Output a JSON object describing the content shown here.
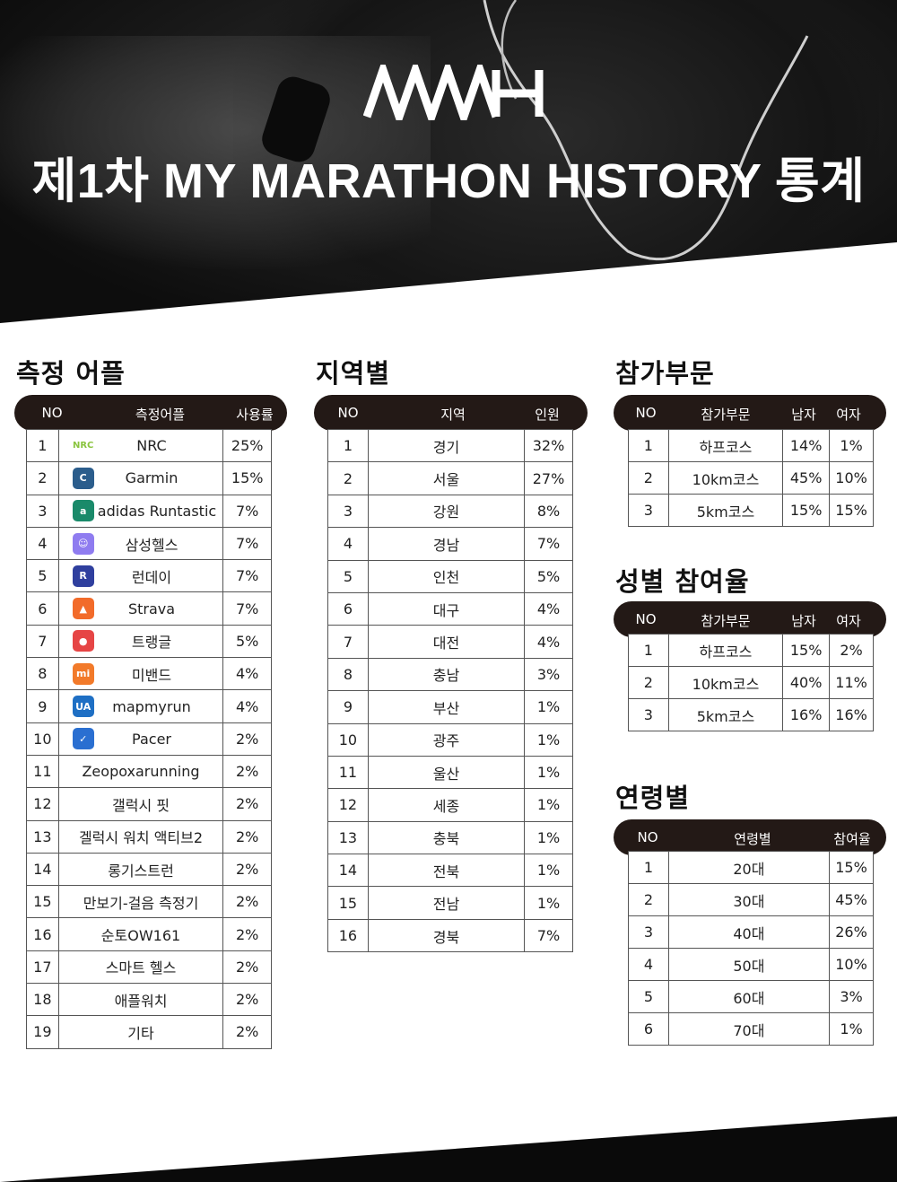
{
  "header": {
    "logo": "MMH",
    "title": "제1차 MY MARATHON HISTORY 통계"
  },
  "apps": {
    "title": "측정 어플",
    "headers": [
      "NO",
      "측정어플",
      "사용률"
    ],
    "rows": [
      {
        "no": "1",
        "name": "NRC",
        "rate": "25%",
        "icon": "nike-icon",
        "color": "#ffffff"
      },
      {
        "no": "2",
        "name": "Garmin",
        "rate": "15%",
        "icon": "garmin-icon",
        "color": "#2b5d8c"
      },
      {
        "no": "3",
        "name": "adidas Runtastic",
        "rate": "7%",
        "icon": "adidas-icon",
        "color": "#1a8a6a"
      },
      {
        "no": "4",
        "name": "삼성헬스",
        "rate": "7%",
        "icon": "samsung-health-icon",
        "color": "#8f7cf0"
      },
      {
        "no": "5",
        "name": "런데이",
        "rate": "7%",
        "icon": "runday-icon",
        "color": "#2f3f9e"
      },
      {
        "no": "6",
        "name": "Strava",
        "rate": "7%",
        "icon": "strava-icon",
        "color": "#f26b2a"
      },
      {
        "no": "7",
        "name": "트랭글",
        "rate": "5%",
        "icon": "tranggle-icon",
        "color": "#e64545"
      },
      {
        "no": "8",
        "name": "미밴드",
        "rate": "4%",
        "icon": "miband-icon",
        "color": "#f27a2a"
      },
      {
        "no": "9",
        "name": "mapmyrun",
        "rate": "4%",
        "icon": "mapmyrun-icon",
        "color": "#1e6fc4"
      },
      {
        "no": "10",
        "name": "Pacer",
        "rate": "2%",
        "icon": "pacer-icon",
        "color": "#2a6fd1"
      },
      {
        "no": "11",
        "name": "Zeopoxarunning",
        "rate": "2%"
      },
      {
        "no": "12",
        "name": "갤럭시 핏",
        "rate": "2%"
      },
      {
        "no": "13",
        "name": "겔럭시 워치 액티브2",
        "rate": "2%"
      },
      {
        "no": "14",
        "name": "롱기스트런",
        "rate": "2%"
      },
      {
        "no": "15",
        "name": "만보기-걸음 측정기",
        "rate": "2%"
      },
      {
        "no": "16",
        "name": "순토OW161",
        "rate": "2%"
      },
      {
        "no": "17",
        "name": "스마트 헬스",
        "rate": "2%"
      },
      {
        "no": "18",
        "name": "애플워치",
        "rate": "2%"
      },
      {
        "no": "19",
        "name": "기타",
        "rate": "2%"
      }
    ]
  },
  "regions": {
    "title": "지역별",
    "headers": [
      "NO",
      "지역",
      "인원"
    ],
    "rows": [
      {
        "no": "1",
        "name": "경기",
        "rate": "32%"
      },
      {
        "no": "2",
        "name": "서울",
        "rate": "27%"
      },
      {
        "no": "3",
        "name": "강원",
        "rate": "8%"
      },
      {
        "no": "4",
        "name": "경남",
        "rate": "7%"
      },
      {
        "no": "5",
        "name": "인천",
        "rate": "5%"
      },
      {
        "no": "6",
        "name": "대구",
        "rate": "4%"
      },
      {
        "no": "7",
        "name": "대전",
        "rate": "4%"
      },
      {
        "no": "8",
        "name": "충남",
        "rate": "3%"
      },
      {
        "no": "9",
        "name": "부산",
        "rate": "1%"
      },
      {
        "no": "10",
        "name": "광주",
        "rate": "1%"
      },
      {
        "no": "11",
        "name": "울산",
        "rate": "1%"
      },
      {
        "no": "12",
        "name": "세종",
        "rate": "1%"
      },
      {
        "no": "13",
        "name": "충북",
        "rate": "1%"
      },
      {
        "no": "14",
        "name": "전북",
        "rate": "1%"
      },
      {
        "no": "15",
        "name": "전남",
        "rate": "1%"
      },
      {
        "no": "16",
        "name": "경북",
        "rate": "7%"
      }
    ]
  },
  "divisions": {
    "title": "참가부문",
    "headers": [
      "NO",
      "참가부문",
      "남자",
      "여자"
    ],
    "rows": [
      {
        "no": "1",
        "name": "하프코스",
        "male": "14%",
        "female": "1%"
      },
      {
        "no": "2",
        "name": "10km코스",
        "male": "45%",
        "female": "10%"
      },
      {
        "no": "3",
        "name": "5km코스",
        "male": "15%",
        "female": "15%"
      }
    ]
  },
  "gender": {
    "title": "성별 참여율",
    "headers": [
      "NO",
      "참가부문",
      "남자",
      "여자"
    ],
    "rows": [
      {
        "no": "1",
        "name": "하프코스",
        "male": "15%",
        "female": "2%"
      },
      {
        "no": "2",
        "name": "10km코스",
        "male": "40%",
        "female": "11%"
      },
      {
        "no": "3",
        "name": "5km코스",
        "male": "16%",
        "female": "16%"
      }
    ]
  },
  "ages": {
    "title": "연령별",
    "headers": [
      "NO",
      "연령별",
      "참여율"
    ],
    "rows": [
      {
        "no": "1",
        "name": "20대",
        "rate": "15%"
      },
      {
        "no": "2",
        "name": "30대",
        "rate": "45%"
      },
      {
        "no": "3",
        "name": "40대",
        "rate": "26%"
      },
      {
        "no": "4",
        "name": "50대",
        "rate": "10%"
      },
      {
        "no": "5",
        "name": "60대",
        "rate": "3%"
      },
      {
        "no": "6",
        "name": "70대",
        "rate": "1%"
      }
    ]
  }
}
